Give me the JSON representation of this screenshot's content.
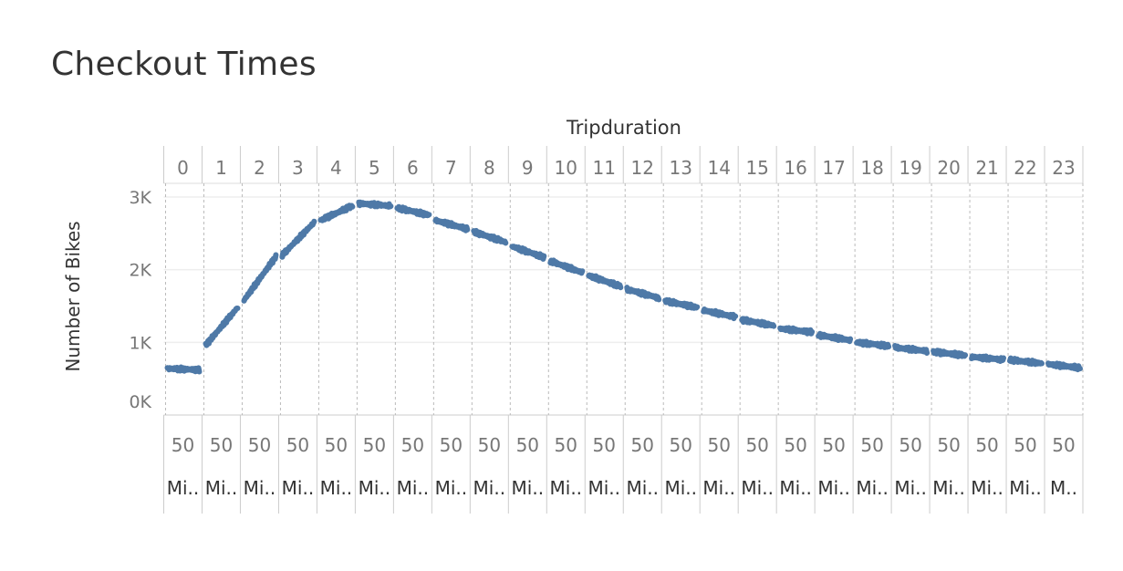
{
  "chart_data": {
    "type": "line",
    "title": "Checkout Times",
    "column_header": "Tripduration",
    "ylabel": "Number of Bikes",
    "ylim": [
      0,
      3200
    ],
    "yticks": [
      {
        "value": 0,
        "label": "0K"
      },
      {
        "value": 1000,
        "label": "1K"
      },
      {
        "value": 2000,
        "label": "2K"
      },
      {
        "value": 3000,
        "label": "3K"
      }
    ],
    "panels": [
      "0",
      "1",
      "2",
      "3",
      "4",
      "5",
      "6",
      "7",
      "8",
      "9",
      "10",
      "11",
      "12",
      "13",
      "14",
      "15",
      "16",
      "17",
      "18",
      "19",
      "20",
      "21",
      "22",
      "23"
    ],
    "panel_sublabels": [
      "50",
      "50",
      "50",
      "50",
      "50",
      "50",
      "50",
      "50",
      "50",
      "50",
      "50",
      "50",
      "50",
      "50",
      "50",
      "50",
      "50",
      "50",
      "50",
      "50",
      "50",
      "50",
      "50",
      "50"
    ],
    "panel_unit_labels": [
      "Mi..",
      "Mi..",
      "Mi..",
      "Mi..",
      "Mi..",
      "Mi..",
      "Mi..",
      "Mi..",
      "Mi..",
      "Mi..",
      "Mi..",
      "Mi..",
      "Mi..",
      "Mi..",
      "Mi..",
      "Mi..",
      "Mi..",
      "Mi..",
      "Mi..",
      "Mi..",
      "Mi..",
      "Mi..",
      "Mi..",
      "M.."
    ],
    "series": [
      {
        "color": "#4e79a7",
        "segments": [
          {
            "panel": 0,
            "start": 640,
            "end": 620
          },
          {
            "panel": 1,
            "start": 960,
            "end": 1480
          },
          {
            "panel": 2,
            "start": 1580,
            "end": 2180
          },
          {
            "panel": 3,
            "start": 2200,
            "end": 2650
          },
          {
            "panel": 4,
            "start": 2680,
            "end": 2880
          },
          {
            "panel": 5,
            "start": 2910,
            "end": 2880
          },
          {
            "panel": 6,
            "start": 2850,
            "end": 2750
          },
          {
            "panel": 7,
            "start": 2680,
            "end": 2560
          },
          {
            "panel": 8,
            "start": 2520,
            "end": 2380
          },
          {
            "panel": 9,
            "start": 2320,
            "end": 2170
          },
          {
            "panel": 10,
            "start": 2120,
            "end": 1960
          },
          {
            "panel": 11,
            "start": 1920,
            "end": 1770
          },
          {
            "panel": 12,
            "start": 1730,
            "end": 1610
          },
          {
            "panel": 13,
            "start": 1570,
            "end": 1480
          },
          {
            "panel": 14,
            "start": 1440,
            "end": 1350
          },
          {
            "panel": 15,
            "start": 1310,
            "end": 1230
          },
          {
            "panel": 16,
            "start": 1190,
            "end": 1140
          },
          {
            "panel": 17,
            "start": 1100,
            "end": 1030
          },
          {
            "panel": 18,
            "start": 1000,
            "end": 950
          },
          {
            "panel": 19,
            "start": 930,
            "end": 880
          },
          {
            "panel": 20,
            "start": 870,
            "end": 820
          },
          {
            "panel": 21,
            "start": 800,
            "end": 760
          },
          {
            "panel": 22,
            "start": 760,
            "end": 710
          },
          {
            "panel": 23,
            "start": 700,
            "end": 650
          }
        ]
      }
    ]
  }
}
